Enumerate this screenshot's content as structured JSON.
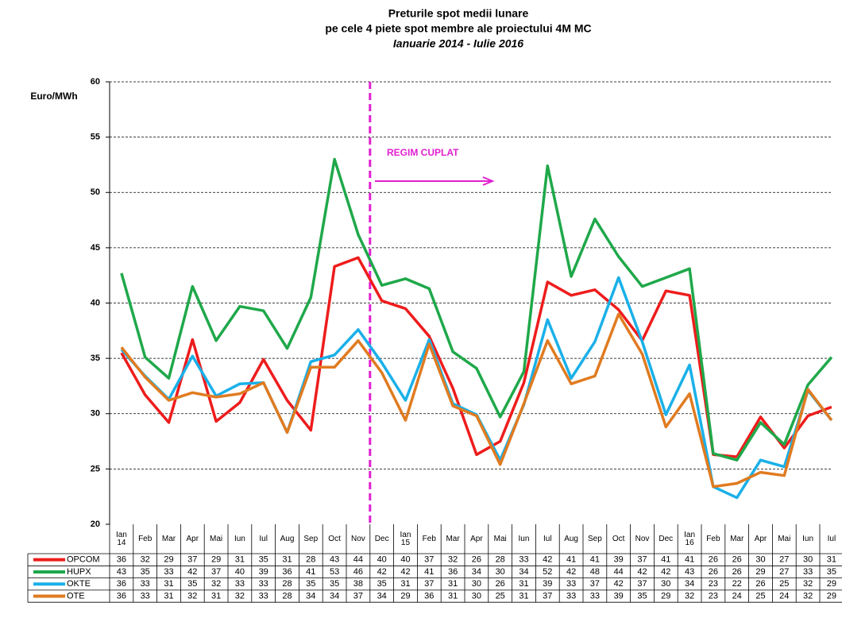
{
  "chart_data": {
    "type": "line",
    "title": "Preturile spot medii lunare",
    "subtitle": "pe cele 4 piete spot membre ale proiectului 4M MC",
    "period": "Ianuarie 2014 - Iulie 2016",
    "y_label": "Euro/MWh",
    "annotation": "REGIM CUPLAT",
    "categories": [
      "Ian 14",
      "Feb",
      "Mar",
      "Apr",
      "Mai",
      "Iun",
      "Iul",
      "Aug",
      "Sep",
      "Oct",
      "Nov",
      "Dec",
      "Ian 15",
      "Feb",
      "Mar",
      "Apr",
      "Mai",
      "Iun",
      "Iul",
      "Aug",
      "Sep",
      "Oct",
      "Nov",
      "Dec",
      "Ian 16",
      "Feb",
      "Mar",
      "Apr",
      "Mai",
      "Iun",
      "Iul"
    ],
    "series": [
      {
        "name": "OPCOM",
        "color": "#ee1c1c",
        "values": [
          35.5,
          31.7,
          29.2,
          36.7,
          29.3,
          31.0,
          34.9,
          31.2,
          28.5,
          43.3,
          44.1,
          40.2,
          39.5,
          37.0,
          32.3,
          26.3,
          27.5,
          32.8,
          41.9,
          40.7,
          41.2,
          39.4,
          36.6,
          41.1,
          40.7,
          26.3,
          26.1,
          29.7,
          26.9,
          29.8,
          30.6
        ],
        "value_labels": [
          "36",
          "32",
          "29",
          "37",
          "29",
          "31",
          "35",
          "31",
          "28",
          "43",
          "44",
          "40",
          "40",
          "37",
          "32",
          "26",
          "28",
          "33",
          "42",
          "41",
          "41",
          "39",
          "37",
          "41",
          "41",
          "26",
          "26",
          "30",
          "27",
          "30",
          "31"
        ]
      },
      {
        "name": "HUPX",
        "color": "#1fa84a",
        "values": [
          42.7,
          35.1,
          33.2,
          41.5,
          36.6,
          39.7,
          39.3,
          35.9,
          40.5,
          53.0,
          46.2,
          41.6,
          42.2,
          41.3,
          35.6,
          34.1,
          29.7,
          33.8,
          52.4,
          42.4,
          47.6,
          44.2,
          41.5,
          42.3,
          43.1,
          26.4,
          25.8,
          29.2,
          27.2,
          32.6,
          35.1
        ],
        "value_labels": [
          "43",
          "35",
          "33",
          "42",
          "37",
          "40",
          "39",
          "36",
          "41",
          "53",
          "46",
          "42",
          "42",
          "41",
          "36",
          "34",
          "30",
          "34",
          "52",
          "42",
          "48",
          "44",
          "42",
          "42",
          "43",
          "26",
          "26",
          "29",
          "27",
          "33",
          "35"
        ]
      },
      {
        "name": "OKTE",
        "color": "#1ab0e8",
        "values": [
          35.8,
          33.4,
          31.3,
          35.2,
          31.6,
          32.7,
          32.8,
          28.3,
          34.7,
          35.3,
          37.6,
          34.6,
          31.2,
          36.7,
          30.9,
          29.9,
          25.8,
          30.8,
          38.5,
          33.2,
          36.5,
          42.3,
          36.5,
          29.9,
          34.4,
          23.4,
          22.4,
          25.8,
          25.2,
          32.1,
          29.4
        ],
        "value_labels": [
          "36",
          "33",
          "31",
          "35",
          "32",
          "33",
          "33",
          "28",
          "35",
          "35",
          "38",
          "35",
          "31",
          "37",
          "31",
          "30",
          "26",
          "31",
          "39",
          "33",
          "37",
          "42",
          "37",
          "30",
          "34",
          "23",
          "22",
          "26",
          "25",
          "32",
          "29"
        ]
      },
      {
        "name": "OTE",
        "color": "#e07b20",
        "values": [
          36.0,
          33.3,
          31.2,
          31.9,
          31.5,
          31.8,
          32.8,
          28.3,
          34.2,
          34.2,
          36.6,
          33.7,
          29.4,
          36.3,
          30.7,
          29.8,
          25.4,
          30.9,
          36.6,
          32.7,
          33.4,
          39.0,
          35.4,
          28.8,
          31.8,
          23.4,
          23.7,
          24.7,
          24.4,
          32.2,
          29.4
        ],
        "value_labels": [
          "36",
          "33",
          "31",
          "32",
          "31",
          "32",
          "33",
          "28",
          "34",
          "34",
          "37",
          "34",
          "29",
          "36",
          "31",
          "30",
          "25",
          "31",
          "37",
          "33",
          "33",
          "39",
          "35",
          "29",
          "32",
          "23",
          "24",
          "25",
          "24",
          "32",
          "29"
        ]
      }
    ],
    "ylim": [
      20,
      60
    ],
    "yticks": [
      20,
      25,
      30,
      35,
      40,
      45,
      50,
      55,
      60
    ],
    "grid": true
  }
}
